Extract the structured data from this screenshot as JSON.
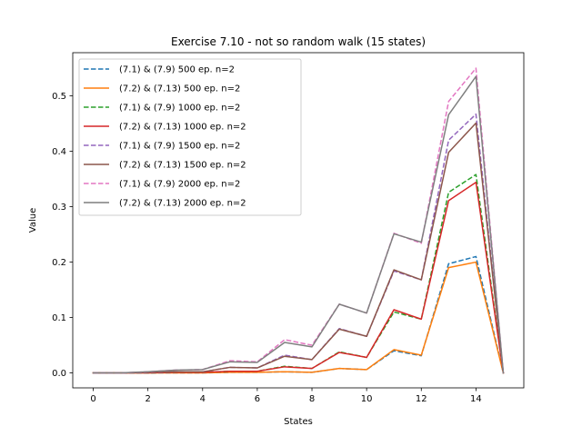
{
  "chart_data": {
    "type": "line",
    "title": "Exercise 7.10 - not so random walk (15 states)",
    "xlabel": "States",
    "ylabel": "Value",
    "xlim": [
      -0.75,
      15.75
    ],
    "ylim": [
      -0.027,
      0.578
    ],
    "xticks": [
      0,
      2,
      4,
      6,
      8,
      10,
      12,
      14
    ],
    "xtick_labels": [
      "0",
      "2",
      "4",
      "6",
      "8",
      "10",
      "12",
      "14"
    ],
    "yticks": [
      0.0,
      0.1,
      0.2,
      0.3,
      0.4,
      0.5
    ],
    "ytick_labels": [
      "0.0",
      "0.1",
      "0.2",
      "0.3",
      "0.4",
      "0.5"
    ],
    "grid": false,
    "legend_location": "top-left",
    "x": [
      0,
      1,
      2,
      3,
      4,
      5,
      6,
      7,
      8,
      9,
      10,
      11,
      12,
      13,
      14,
      15
    ],
    "series": [
      {
        "name": "(7.1) & (7.9) 500 ep. n=2",
        "color": "#1f77b4",
        "dashed": true,
        "values": [
          0,
          0,
          0,
          0,
          0,
          0.001,
          0.001,
          0.002,
          0.001,
          0.008,
          0.006,
          0.04,
          0.031,
          0.197,
          0.21,
          0
        ]
      },
      {
        "name": "(7.2) & (7.13) 500 ep. n=2",
        "color": "#ff7f0e",
        "dashed": false,
        "values": [
          0,
          0,
          0,
          0,
          0,
          0.001,
          0.001,
          0.002,
          0.001,
          0.008,
          0.006,
          0.042,
          0.032,
          0.19,
          0.2,
          0
        ]
      },
      {
        "name": "(7.1) & (7.9) 1000 ep. n=2",
        "color": "#2ca02c",
        "dashed": true,
        "values": [
          0,
          0,
          0,
          0.001,
          0.001,
          0.003,
          0.003,
          0.012,
          0.008,
          0.038,
          0.028,
          0.11,
          0.097,
          0.326,
          0.358,
          0
        ]
      },
      {
        "name": "(7.2) & (7.13) 1000 ep. n=2",
        "color": "#d62728",
        "dashed": false,
        "values": [
          0,
          0,
          0,
          0.001,
          0.001,
          0.003,
          0.003,
          0.011,
          0.008,
          0.037,
          0.028,
          0.114,
          0.097,
          0.311,
          0.344,
          0
        ]
      },
      {
        "name": "(7.1) & (7.9) 1500 ep. n=2",
        "color": "#9467bd",
        "dashed": true,
        "values": [
          0,
          0,
          0.001,
          0.002,
          0.002,
          0.01,
          0.009,
          0.032,
          0.024,
          0.08,
          0.066,
          0.184,
          0.168,
          0.42,
          0.467,
          0
        ]
      },
      {
        "name": "(7.2) & (7.13) 1500 ep. n=2",
        "color": "#8c564b",
        "dashed": false,
        "values": [
          0,
          0,
          0.001,
          0.002,
          0.002,
          0.01,
          0.009,
          0.03,
          0.024,
          0.079,
          0.066,
          0.186,
          0.168,
          0.398,
          0.451,
          0
        ]
      },
      {
        "name": "(7.1) & (7.9) 2000 ep. n=2",
        "color": "#e377c2",
        "dashed": true,
        "values": [
          0,
          0,
          0.002,
          0.005,
          0.006,
          0.022,
          0.02,
          0.06,
          0.05,
          0.124,
          0.108,
          0.252,
          0.234,
          0.49,
          0.55,
          0
        ]
      },
      {
        "name": "(7.2) & (7.13) 2000 ep. n=2",
        "color": "#7f7f7f",
        "dashed": false,
        "values": [
          0,
          0,
          0.002,
          0.005,
          0.006,
          0.02,
          0.019,
          0.055,
          0.047,
          0.124,
          0.108,
          0.251,
          0.236,
          0.466,
          0.535,
          0
        ]
      }
    ]
  }
}
